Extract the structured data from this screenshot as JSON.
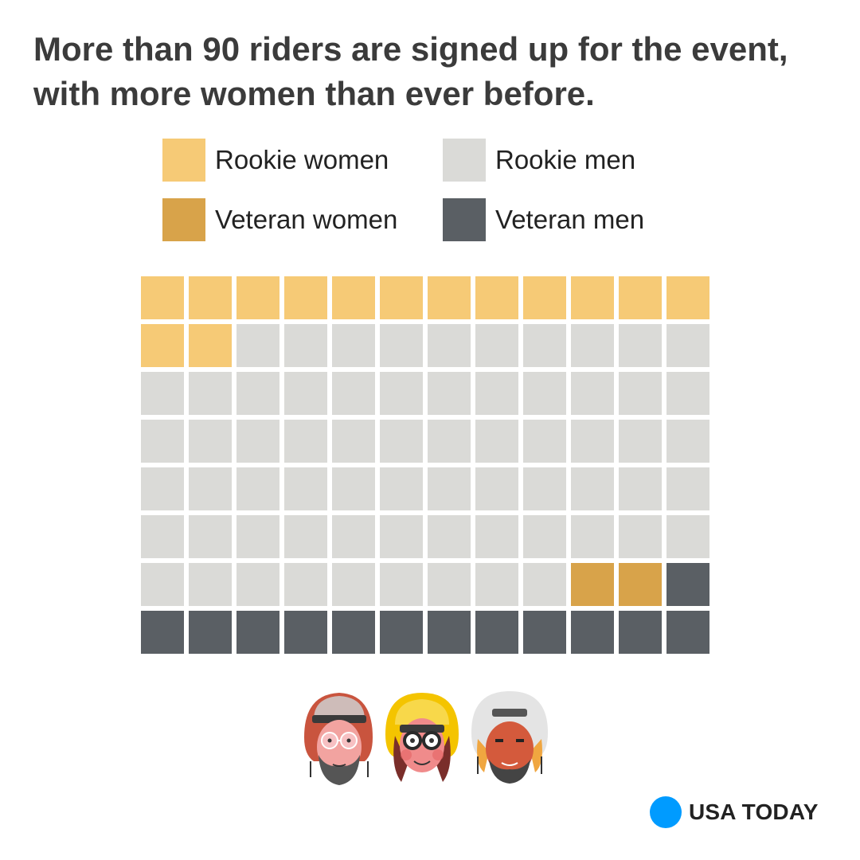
{
  "title": "More than 90 riders are signed up for the event, with more women than ever before.",
  "brand": {
    "name": "USA TODAY",
    "dot_color": "#009bff"
  },
  "chart_data": {
    "type": "waffle",
    "grid": {
      "columns": 12,
      "rows": 8
    },
    "order": "row-major, top-left to bottom-right",
    "series": [
      {
        "name": "Rookie women",
        "value": 14,
        "color": "#f6ca76"
      },
      {
        "name": "Rookie men",
        "value": 67,
        "color": "#dadad7"
      },
      {
        "name": "Veteran women",
        "value": 2,
        "color": "#d8a34a"
      },
      {
        "name": "Veteran men",
        "value": 13,
        "color": "#5a5f64"
      }
    ],
    "legend": [
      {
        "label": "Rookie women",
        "color": "#f6ca76"
      },
      {
        "label": "Rookie men",
        "color": "#dadad7"
      },
      {
        "label": "Veteran women",
        "color": "#d8a34a"
      },
      {
        "label": "Veteran men",
        "color": "#5a5f64"
      }
    ],
    "legend_position": "top"
  },
  "illustrations": [
    "rider-face-bearded-man-icon",
    "rider-face-woman-glasses-icon",
    "rider-face-man-white-helmet-icon"
  ]
}
